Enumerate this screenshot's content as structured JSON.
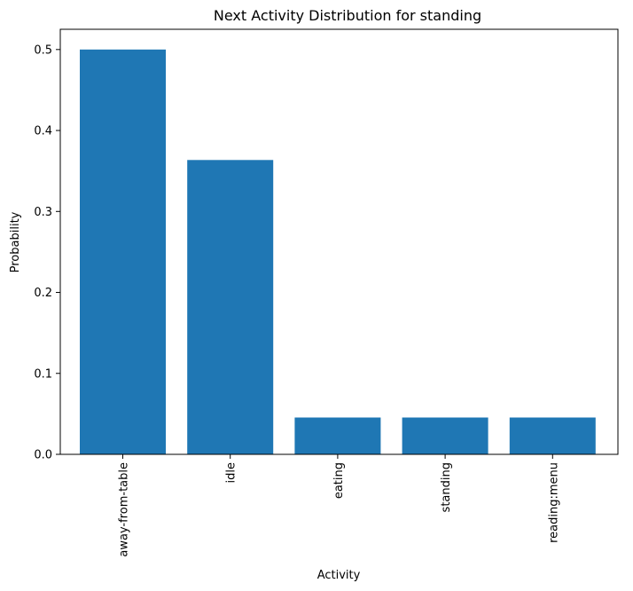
{
  "chart_data": {
    "type": "bar",
    "title": "Next Activity Distribution for standing",
    "xlabel": "Activity",
    "ylabel": "Probability",
    "categories": [
      "away-from-table",
      "idle",
      "eating",
      "standing",
      "reading:menu"
    ],
    "values": [
      0.5,
      0.3636,
      0.0455,
      0.0455,
      0.0455
    ],
    "ylim": [
      0,
      0.525
    ],
    "yticks": [
      0.0,
      0.1,
      0.2,
      0.3,
      0.4,
      0.5
    ],
    "ytick_labels": [
      "0.0",
      "0.1",
      "0.2",
      "0.3",
      "0.4",
      "0.5"
    ],
    "bar_color": "#1f77b4",
    "grid": false,
    "legend": "none"
  }
}
